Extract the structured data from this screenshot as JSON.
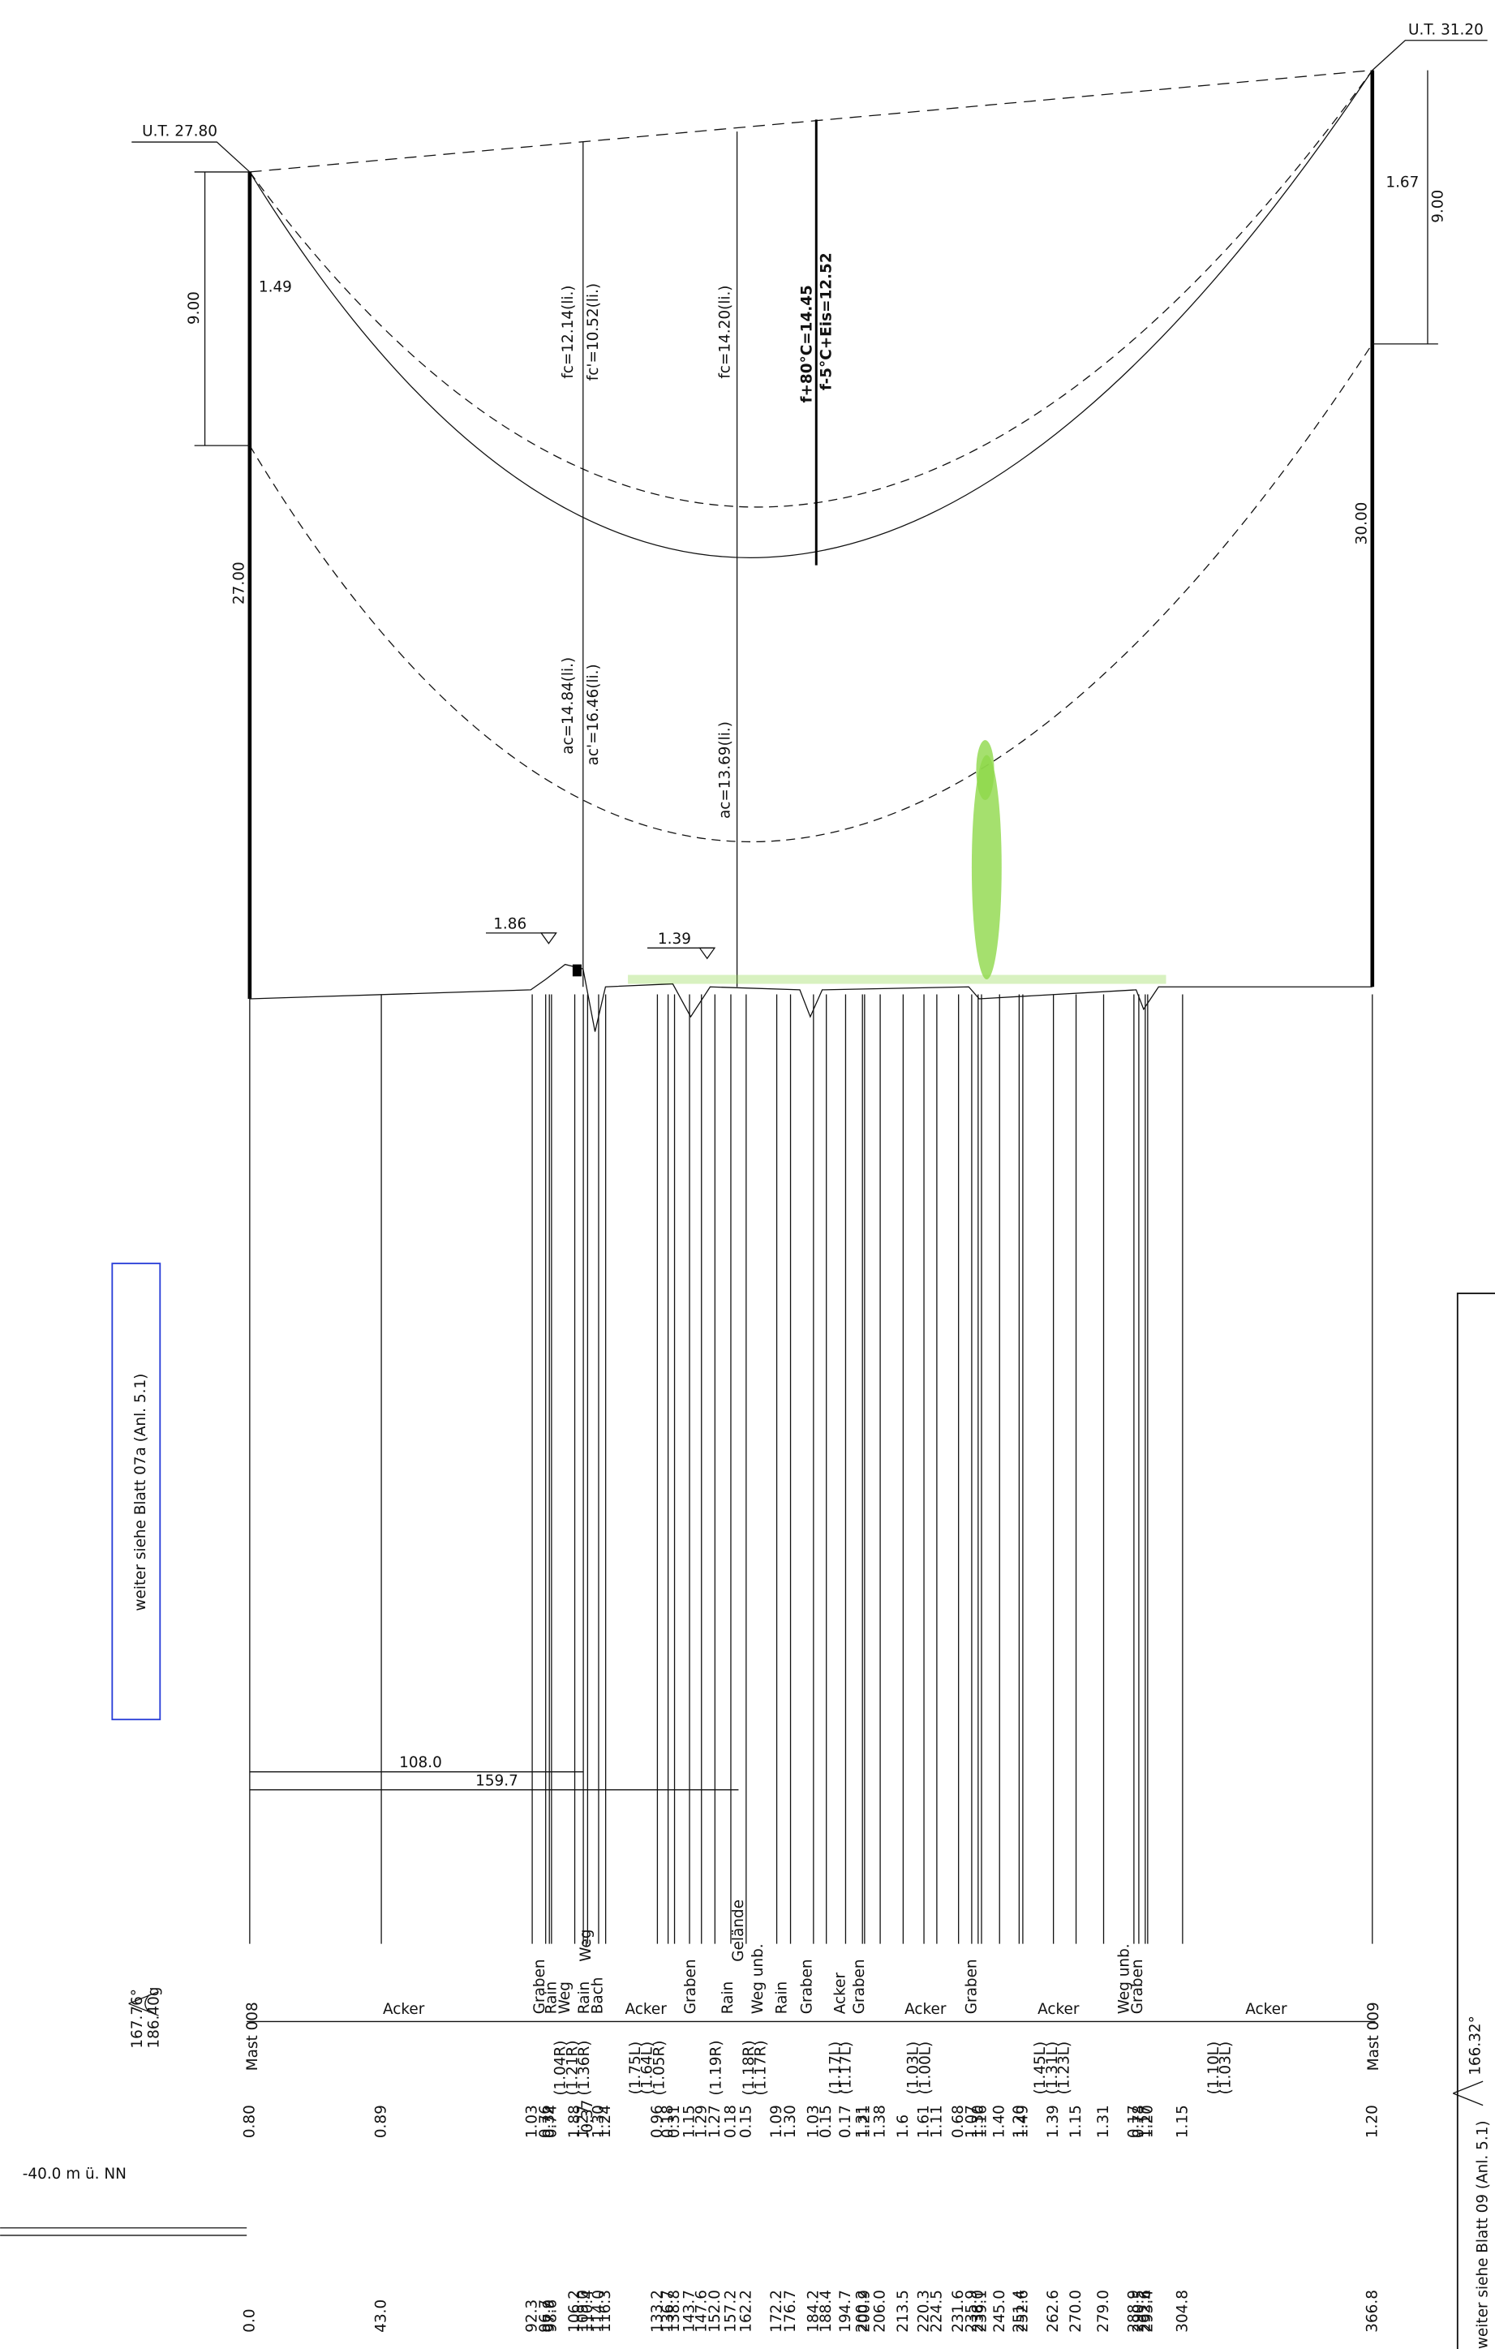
{
  "span": {
    "left_mast": "Mast 008",
    "right_mast": "Mast 009",
    "left_ut": "U.T. 27.80",
    "right_ut": "U.T. 31.20",
    "left_height": "27.00",
    "right_height": "30.00",
    "left_clearance": "9.00",
    "right_clearance": "9.00",
    "left_offset": "1.49",
    "right_offset": "1.67",
    "left_angle": [
      "167.76°",
      "186.40g"
    ],
    "right_angle": [
      "166.32°"
    ]
  },
  "sag_labels": [
    "fc=12.14(li.)",
    "fc'=10.52(li.)",
    "fc=14.20(li.)",
    "f+80°C=14.45",
    "f-5°C+Eis=12.52"
  ],
  "clearance_labels": [
    "ac=14.84(li.)",
    "ac'=16.46(li.)",
    "ac=13.69(li.)"
  ],
  "object_heights": [
    "1.86",
    "1.39"
  ],
  "distances": [
    "108.0",
    "159.7"
  ],
  "continuation": [
    "weiter siehe Blatt 07a (Anl. 5.1)",
    "weiter siehe Blatt 09 (Anl. 5.1)"
  ],
  "upper_labels": [
    "Weg",
    "Gelände"
  ],
  "land_use": [
    "Acker",
    "Graben",
    "Rain",
    "Weg",
    "Rain",
    "Bach",
    "Acker",
    "Graben",
    "Rain",
    "Weg unb.",
    "Rain",
    "Graben",
    "Acker",
    "Graben",
    "Acker",
    "Graben",
    "Acker",
    "Weg unb.",
    "Graben",
    "Acker"
  ],
  "crossings": [
    "(1.04R)",
    "(1.21R)",
    "(1.36R)",
    "(1.75L)",
    "(1.64L)",
    "(1.05R)",
    "(1.19R)",
    "(1.18R)",
    "(1.17R)",
    "(1.17L)",
    "(1.17L)",
    "(1.03L)",
    "(1.00L)",
    "(1.45L)",
    "(1.31L)",
    "(1.23L)",
    "(1.10L)",
    "(1.03L)"
  ],
  "datum": "-40.0 m ü. NN",
  "profile": {
    "stations": [
      "0.0",
      "43.0",
      "92.3",
      "96.7",
      "97.9",
      "98.6",
      "106.2",
      "109.0",
      "110.4",
      "114.0",
      "116.3",
      "133.2",
      "136.7",
      "138.8",
      "143.7",
      "147.6",
      "152.0",
      "157.2",
      "162.2",
      "172.2",
      "176.7",
      "184.2",
      "188.4",
      "194.7",
      "200.2",
      "200.9",
      "206.0",
      "213.5",
      "220.3",
      "224.5",
      "231.6",
      "235.9",
      "238.0",
      "239.1",
      "245.0",
      "251.4",
      "252.6",
      "262.6",
      "270.0",
      "279.0",
      "288.9",
      "290.5",
      "292.6",
      "293.4",
      "304.8",
      "366.8"
    ],
    "heights": [
      "0.80",
      "0.89",
      "1.03",
      "0.76",
      "0.32",
      "0.74",
      "1.88",
      "1.27",
      "-0.37",
      "1.30",
      "1.24",
      "0.96",
      "0.18",
      "0.31",
      "1.15",
      "1.29",
      "1.27",
      "0.18",
      "0.15",
      "1.09",
      "1.30",
      "1.03",
      "0.15",
      "0.17",
      "1.31",
      "1.21",
      "1.38",
      "1.6",
      "1.61",
      "1.11",
      "0.68",
      "1.07",
      "1.30",
      "1.16",
      "1.40",
      "1.20",
      "1.49",
      "1.39",
      "1.15",
      "1.31",
      "0.17",
      "0.78",
      "1.17",
      "1.20",
      "1.15",
      "1.20"
    ]
  }
}
